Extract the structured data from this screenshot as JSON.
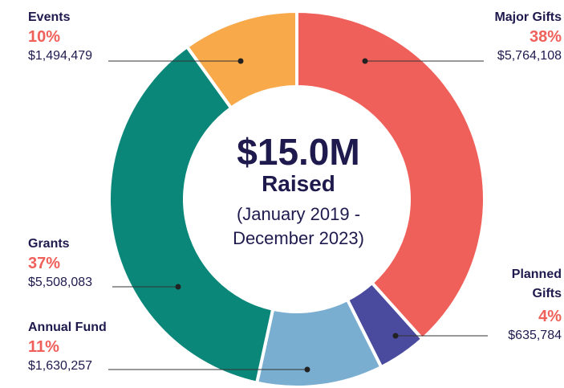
{
  "chart_data": {
    "type": "donut",
    "categories": [
      "Major Gifts",
      "Planned Gifts",
      "Annual Fund",
      "Grants",
      "Events"
    ],
    "values": [
      5764108,
      635784,
      1630257,
      5508083,
      1494479
    ],
    "value_labels": [
      "$5,764,108",
      "$635,784",
      "$1,630,257",
      "$5,508,083",
      "$1,494,479"
    ],
    "shares": [
      38,
      4,
      11,
      37,
      10
    ],
    "share_labels": [
      "38%",
      "4%",
      "11%",
      "37%",
      "10%"
    ],
    "colors": [
      "#f0605a",
      "#4a4a9e",
      "#7aaed0",
      "#0b877a",
      "#f8a94a"
    ],
    "center_text": [
      "$15.0M",
      "Raised",
      "(January 2019 -",
      "December 2023)"
    ]
  }
}
